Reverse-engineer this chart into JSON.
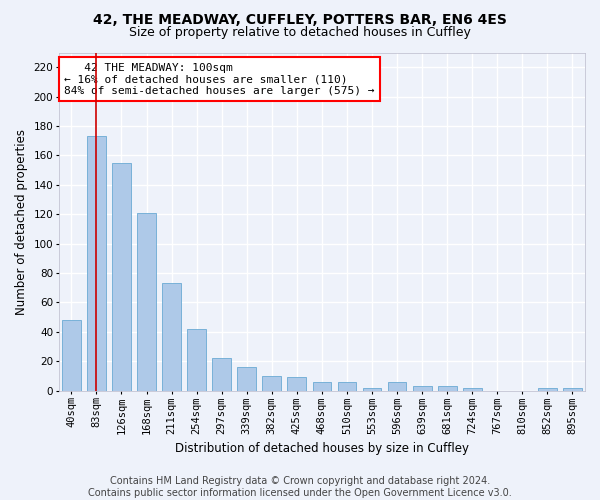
{
  "title1": "42, THE MEADWAY, CUFFLEY, POTTERS BAR, EN6 4ES",
  "title2": "Size of property relative to detached houses in Cuffley",
  "xlabel": "Distribution of detached houses by size in Cuffley",
  "ylabel": "Number of detached properties",
  "footer1": "Contains HM Land Registry data © Crown copyright and database right 2024.",
  "footer2": "Contains public sector information licensed under the Open Government Licence v3.0.",
  "annotation_line1": "   42 THE MEADWAY: 100sqm",
  "annotation_line2": "← 16% of detached houses are smaller (110)",
  "annotation_line3": "84% of semi-detached houses are larger (575) →",
  "bar_color": "#aec9e8",
  "bar_edge_color": "#6aaad4",
  "vline_color": "#cc0000",
  "vline_x": 1,
  "ylim": [
    0,
    230
  ],
  "yticks": [
    0,
    20,
    40,
    60,
    80,
    100,
    120,
    140,
    160,
    180,
    200,
    220
  ],
  "categories": [
    "40sqm",
    "83sqm",
    "126sqm",
    "168sqm",
    "211sqm",
    "254sqm",
    "297sqm",
    "339sqm",
    "382sqm",
    "425sqm",
    "468sqm",
    "510sqm",
    "553sqm",
    "596sqm",
    "639sqm",
    "681sqm",
    "724sqm",
    "767sqm",
    "810sqm",
    "852sqm",
    "895sqm"
  ],
  "values": [
    48,
    173,
    155,
    121,
    73,
    42,
    22,
    16,
    10,
    9,
    6,
    6,
    2,
    6,
    3,
    3,
    2,
    0,
    0,
    2,
    2
  ],
  "background_color": "#eef2fa",
  "grid_color": "#ffffff",
  "title_fontsize": 10,
  "subtitle_fontsize": 9,
  "axis_label_fontsize": 8.5,
  "tick_fontsize": 7.5,
  "footer_fontsize": 7,
  "annotation_fontsize": 8,
  "bar_width": 0.75
}
